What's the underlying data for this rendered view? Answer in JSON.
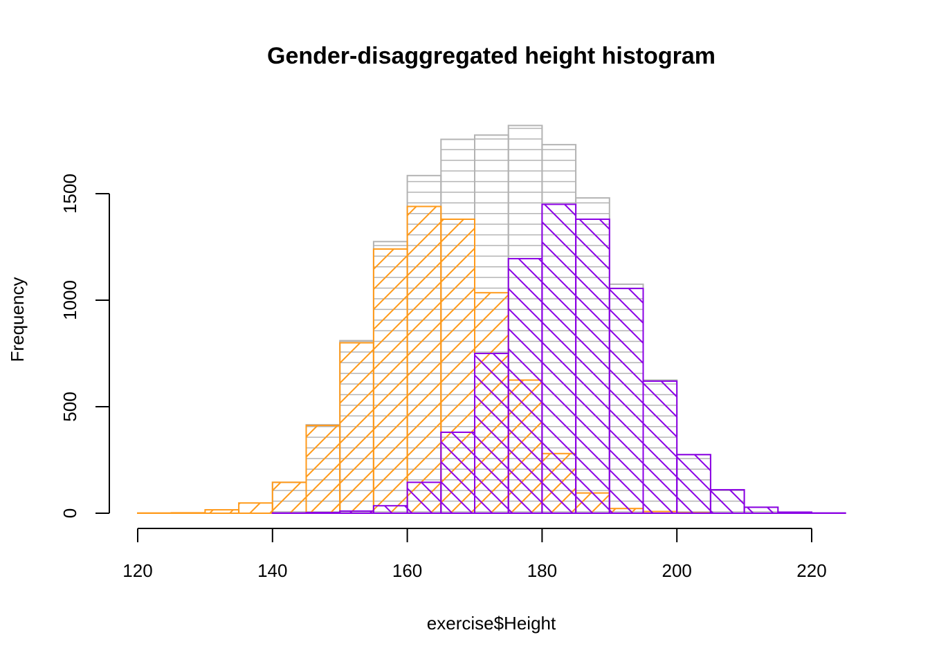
{
  "chart_data": {
    "type": "bar",
    "title": "Gender-disaggregated height histogram",
    "xlabel": "exercise$Height",
    "ylabel": "Frequency",
    "xlim": [
      120,
      225
    ],
    "ylim": [
      0,
      1900
    ],
    "x_ticks": [
      120,
      140,
      160,
      180,
      200,
      220
    ],
    "y_ticks": [
      0,
      500,
      1000,
      1500
    ],
    "bin_width": 5,
    "grid": false,
    "legend": "none",
    "series": [
      {
        "color": "#b3b3b3",
        "hatch": "horizontal",
        "bins": [
          [
            140,
            145,
            145
          ],
          [
            145,
            150,
            415
          ],
          [
            150,
            155,
            810
          ],
          [
            155,
            160,
            1275
          ],
          [
            160,
            165,
            1585
          ],
          [
            165,
            170,
            1755
          ],
          [
            170,
            175,
            1775
          ],
          [
            175,
            180,
            1820
          ],
          [
            180,
            185,
            1730
          ],
          [
            185,
            190,
            1480
          ],
          [
            190,
            195,
            1075
          ],
          [
            195,
            200,
            625
          ],
          [
            200,
            205,
            275
          ],
          [
            205,
            210,
            110
          ],
          [
            210,
            215,
            28
          ],
          [
            215,
            220,
            5
          ],
          [
            220,
            225,
            1
          ]
        ]
      },
      {
        "color": "#ff9a1a",
        "hatch": "diagonal-up",
        "bins": [
          [
            120,
            125,
            1
          ],
          [
            125,
            130,
            2
          ],
          [
            130,
            135,
            16
          ],
          [
            135,
            140,
            48
          ],
          [
            140,
            145,
            145
          ],
          [
            145,
            150,
            412
          ],
          [
            150,
            155,
            800
          ],
          [
            155,
            160,
            1240
          ],
          [
            160,
            165,
            1440
          ],
          [
            165,
            170,
            1380
          ],
          [
            170,
            175,
            1035
          ],
          [
            175,
            180,
            625
          ],
          [
            180,
            185,
            280
          ],
          [
            185,
            190,
            95
          ],
          [
            190,
            195,
            22
          ],
          [
            195,
            200,
            8
          ],
          [
            200,
            205,
            2
          ]
        ]
      },
      {
        "color": "#8b00e5",
        "hatch": "diagonal-down",
        "bins": [
          [
            140,
            145,
            1
          ],
          [
            145,
            150,
            3
          ],
          [
            150,
            155,
            10
          ],
          [
            155,
            160,
            35
          ],
          [
            160,
            165,
            145
          ],
          [
            165,
            170,
            380
          ],
          [
            170,
            175,
            750
          ],
          [
            175,
            180,
            1195
          ],
          [
            180,
            185,
            1450
          ],
          [
            185,
            190,
            1380
          ],
          [
            190,
            195,
            1055
          ],
          [
            195,
            200,
            620
          ],
          [
            200,
            205,
            275
          ],
          [
            205,
            210,
            110
          ],
          [
            210,
            215,
            28
          ],
          [
            215,
            220,
            5
          ],
          [
            220,
            225,
            1
          ]
        ]
      }
    ]
  }
}
